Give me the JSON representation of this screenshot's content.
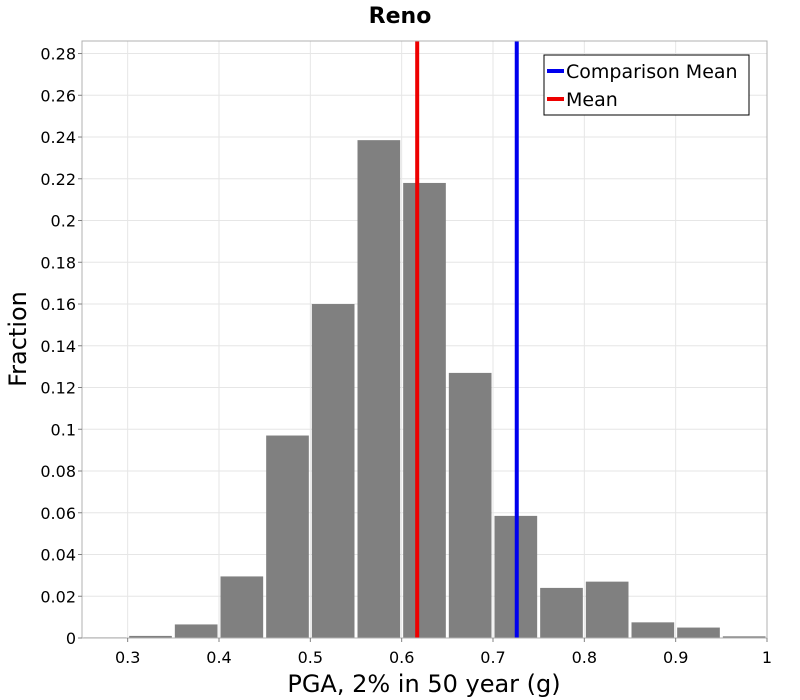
{
  "chart_data": {
    "type": "bar",
    "title": "Reno",
    "xlabel": "PGA, 2% in 50 year (g)",
    "ylabel": "Fraction",
    "xlim": [
      0.25,
      1.0
    ],
    "ylim": [
      0,
      0.286
    ],
    "xticks": [
      0.3,
      0.4,
      0.5,
      0.6,
      0.7,
      0.8,
      0.9,
      1
    ],
    "xtick_labels": [
      "0.3",
      "0.4",
      "0.5",
      "0.6",
      "0.7",
      "0.8",
      "0.9",
      "1"
    ],
    "yticks": [
      0,
      0.02,
      0.04,
      0.06,
      0.08,
      0.1,
      0.12,
      0.14,
      0.16,
      0.18,
      0.2,
      0.22,
      0.24,
      0.26,
      0.28
    ],
    "ytick_labels": [
      "0",
      "0.02",
      "0.04",
      "0.06",
      "0.08",
      "0.1",
      "0.12",
      "0.14",
      "0.16",
      "0.18",
      "0.2",
      "0.22",
      "0.24",
      "0.26",
      "0.28"
    ],
    "grid": true,
    "bin_width": 0.05,
    "bar_color": "#808080",
    "bins": [
      {
        "center": 0.275,
        "value": 0.0003
      },
      {
        "center": 0.325,
        "value": 0.001
      },
      {
        "center": 0.375,
        "value": 0.0065
      },
      {
        "center": 0.425,
        "value": 0.0295
      },
      {
        "center": 0.475,
        "value": 0.097
      },
      {
        "center": 0.525,
        "value": 0.16
      },
      {
        "center": 0.575,
        "value": 0.2385
      },
      {
        "center": 0.625,
        "value": 0.218
      },
      {
        "center": 0.675,
        "value": 0.127
      },
      {
        "center": 0.725,
        "value": 0.0585
      },
      {
        "center": 0.775,
        "value": 0.024
      },
      {
        "center": 0.825,
        "value": 0.027
      },
      {
        "center": 0.875,
        "value": 0.0075
      },
      {
        "center": 0.925,
        "value": 0.005
      },
      {
        "center": 0.975,
        "value": 0.0008
      }
    ],
    "reference_lines": [
      {
        "name": "Comparison Mean",
        "x": 0.726,
        "color": "#0000ee"
      },
      {
        "name": "Mean",
        "x": 0.617,
        "color": "#ee0000"
      }
    ],
    "legend": {
      "position": "top-right",
      "entries": [
        {
          "label": "Comparison Mean",
          "color": "#0000ee"
        },
        {
          "label": "Mean",
          "color": "#ee0000"
        }
      ]
    }
  }
}
